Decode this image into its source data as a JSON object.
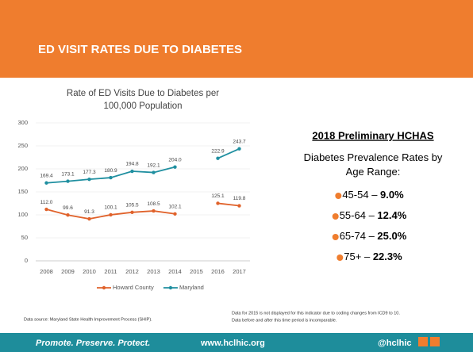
{
  "slide_title": "ED VISIT RATES DUE TO DIABETES",
  "chart_data": {
    "type": "line",
    "title": "Rate of ED Visits Due to Diabetes per 100,000 Population",
    "categories": [
      "2008",
      "2009",
      "2010",
      "2011",
      "2012",
      "2013",
      "2014",
      "2015",
      "2016",
      "2017"
    ],
    "series": [
      {
        "name": "Howard County",
        "color": "#e0622b",
        "values": [
          112.0,
          99.6,
          91.3,
          100.1,
          105.5,
          108.5,
          102.1,
          null,
          125.1,
          119.8
        ],
        "value_labels": [
          "112.0",
          "99.6",
          "91.3",
          "100.1",
          "105.5",
          "108.5",
          "102.1",
          null,
          "125.1",
          "119.8"
        ]
      },
      {
        "name": "Maryland",
        "color": "#1f8fa0",
        "values": [
          169.4,
          173.1,
          177.3,
          180.9,
          194.8,
          192.1,
          204.0,
          null,
          222.9,
          243.7
        ],
        "value_labels": [
          "169.4",
          "173.1",
          "177.3",
          "180.9",
          "194.8",
          "192.1",
          "204.0",
          null,
          "222.9",
          "243.7"
        ]
      }
    ],
    "ylim": [
      0,
      300
    ],
    "yticks": [
      0,
      50,
      100,
      150,
      200,
      250,
      300
    ],
    "grid": true,
    "legend": "bottom"
  },
  "survey": {
    "title": "2018 Preliminary HCHAS",
    "subtitle": "Diabetes Prevalence Rates by Age Range:",
    "items": [
      {
        "range": "45-54 –",
        "rate": "9.0%"
      },
      {
        "range": "55-64 –",
        "rate": "12.4%"
      },
      {
        "range": "65-74 –",
        "rate": "25.0%"
      },
      {
        "range": "75+ –",
        "rate": "22.3%"
      }
    ]
  },
  "source": "Data source:  Maryland State Health Improvement Process (SHIP).",
  "note": [
    "Data for 2015 is not displayed for this indicator due to coding changes from ICD9 to 10.",
    "Data before and after this time period is incomparable."
  ],
  "footer": {
    "motto": "Promote. Preserve. Protect.",
    "url": "www.hclhic.org",
    "handle": "@hclhic"
  }
}
